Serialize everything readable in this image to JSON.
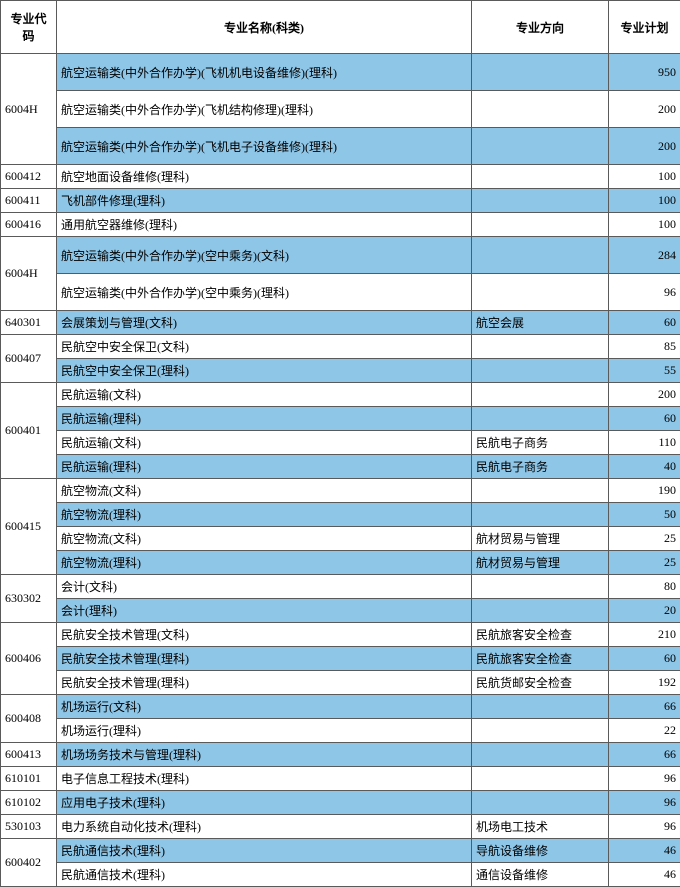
{
  "headers": {
    "code": "专业代码",
    "name": "专业名称(科类)",
    "direction": "专业方向",
    "plan": "专业计划"
  },
  "col_widths": {
    "code": 56,
    "name": 415,
    "direction": 137,
    "plan": 72
  },
  "groups": [
    {
      "code": "6004H",
      "rows": [
        {
          "name": "航空运输类(中外合作办学)(飞机机电设备维修)(理科)",
          "dir": "",
          "plan": 950,
          "cls": "blue",
          "tall": true
        },
        {
          "name": "航空运输类(中外合作办学)(飞机结构修理)(理科)",
          "dir": "",
          "plan": 200,
          "cls": "white",
          "tall": true
        },
        {
          "name": "航空运输类(中外合作办学)(飞机电子设备维修)(理科)",
          "dir": "",
          "plan": 200,
          "cls": "blue",
          "tall": true
        }
      ]
    },
    {
      "code": "600412",
      "rows": [
        {
          "name": "航空地面设备维修(理科)",
          "dir": "",
          "plan": 100,
          "cls": "white"
        }
      ]
    },
    {
      "code": "600411",
      "rows": [
        {
          "name": "飞机部件修理(理科)",
          "dir": "",
          "plan": 100,
          "cls": "blue"
        }
      ]
    },
    {
      "code": "600416",
      "rows": [
        {
          "name": "通用航空器维修(理科)",
          "dir": "",
          "plan": 100,
          "cls": "white"
        }
      ]
    },
    {
      "code": "6004H",
      "rows": [
        {
          "name": "航空运输类(中外合作办学)(空中乘务)(文科)",
          "dir": "",
          "plan": 284,
          "cls": "blue",
          "tall": true
        },
        {
          "name": "航空运输类(中外合作办学)(空中乘务)(理科)",
          "dir": "",
          "plan": 96,
          "cls": "white",
          "tall": true
        }
      ]
    },
    {
      "code": "640301",
      "rows": [
        {
          "name": "会展策划与管理(文科)",
          "dir": "航空会展",
          "plan": 60,
          "cls": "blue"
        }
      ]
    },
    {
      "code": "600407",
      "rows": [
        {
          "name": "民航空中安全保卫(文科)",
          "dir": "",
          "plan": 85,
          "cls": "white"
        },
        {
          "name": "民航空中安全保卫(理科)",
          "dir": "",
          "plan": 55,
          "cls": "blue"
        }
      ]
    },
    {
      "code": "600401",
      "rows": [
        {
          "name": "民航运输(文科)",
          "dir": "",
          "plan": 200,
          "cls": "white"
        },
        {
          "name": "民航运输(理科)",
          "dir": "",
          "plan": 60,
          "cls": "blue"
        },
        {
          "name": "民航运输(文科)",
          "dir": "民航电子商务",
          "plan": 110,
          "cls": "white"
        },
        {
          "name": "民航运输(理科)",
          "dir": "民航电子商务",
          "plan": 40,
          "cls": "blue"
        }
      ]
    },
    {
      "code": "600415",
      "rows": [
        {
          "name": "航空物流(文科)",
          "dir": "",
          "plan": 190,
          "cls": "white"
        },
        {
          "name": "航空物流(理科)",
          "dir": "",
          "plan": 50,
          "cls": "blue"
        },
        {
          "name": "航空物流(文科)",
          "dir": "航材贸易与管理",
          "plan": 25,
          "cls": "white"
        },
        {
          "name": "航空物流(理科)",
          "dir": "航材贸易与管理",
          "plan": 25,
          "cls": "blue"
        }
      ]
    },
    {
      "code": "630302",
      "rows": [
        {
          "name": "会计(文科)",
          "dir": "",
          "plan": 80,
          "cls": "white"
        },
        {
          "name": "会计(理科)",
          "dir": "",
          "plan": 20,
          "cls": "blue"
        }
      ]
    },
    {
      "code": "600406",
      "rows": [
        {
          "name": "民航安全技术管理(文科)",
          "dir": "民航旅客安全检查",
          "plan": 210,
          "cls": "white"
        },
        {
          "name": "民航安全技术管理(理科)",
          "dir": "民航旅客安全检查",
          "plan": 60,
          "cls": "blue"
        },
        {
          "name": "民航安全技术管理(理科)",
          "dir": "民航货邮安全检查",
          "plan": 192,
          "cls": "white"
        }
      ]
    },
    {
      "code": "600408",
      "rows": [
        {
          "name": "机场运行(文科)",
          "dir": "",
          "plan": 66,
          "cls": "blue"
        },
        {
          "name": "机场运行(理科)",
          "dir": "",
          "plan": 22,
          "cls": "white"
        }
      ]
    },
    {
      "code": "600413",
      "rows": [
        {
          "name": "机场场务技术与管理(理科)",
          "dir": "",
          "plan": 66,
          "cls": "blue"
        }
      ]
    },
    {
      "code": "610101",
      "rows": [
        {
          "name": "电子信息工程技术(理科)",
          "dir": "",
          "plan": 96,
          "cls": "white"
        }
      ]
    },
    {
      "code": "610102",
      "rows": [
        {
          "name": "应用电子技术(理科)",
          "dir": "",
          "plan": 96,
          "cls": "blue"
        }
      ]
    },
    {
      "code": "530103",
      "rows": [
        {
          "name": "电力系统自动化技术(理科)",
          "dir": "机场电工技术",
          "plan": 96,
          "cls": "white"
        }
      ]
    },
    {
      "code": "600402",
      "rows": [
        {
          "name": "民航通信技术(理科)",
          "dir": "导航设备维修",
          "plan": 46,
          "cls": "blue"
        },
        {
          "name": "民航通信技术(理科)",
          "dir": "通信设备维修",
          "plan": 46,
          "cls": "white"
        }
      ]
    }
  ]
}
